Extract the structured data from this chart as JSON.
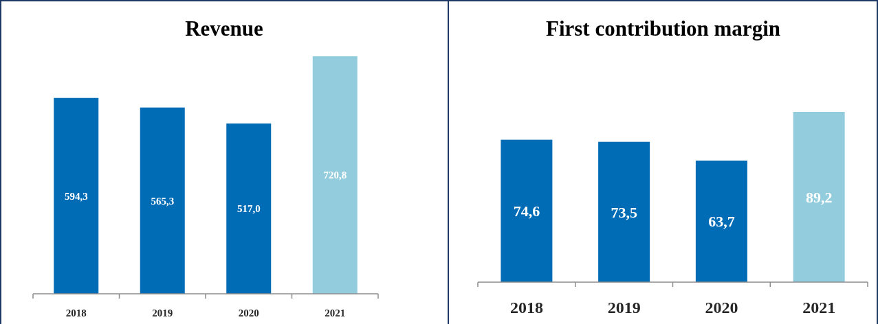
{
  "chart_data": [
    {
      "type": "bar",
      "title": "Revenue",
      "categories": [
        "2018",
        "2019",
        "2020",
        "2021"
      ],
      "values": [
        594.3,
        565.3,
        517.0,
        720.8
      ],
      "value_labels": [
        "594,3",
        "565,3",
        "517,0",
        "720,8"
      ],
      "colors": [
        "#006cb5",
        "#006cb5",
        "#006cb5",
        "#93cddd"
      ],
      "tick_labels": "x"
    },
    {
      "type": "bar",
      "title": "First contribution margin",
      "categories": [
        "2018",
        "2019",
        "2020",
        "2021"
      ],
      "values": [
        74.6,
        73.5,
        63.7,
        89.2
      ],
      "value_labels": [
        "74,6",
        "73,5",
        "63,7",
        "89,2"
      ],
      "colors": [
        "#006cb5",
        "#006cb5",
        "#006cb5",
        "#93cddd"
      ],
      "tick_labels": "x"
    }
  ]
}
